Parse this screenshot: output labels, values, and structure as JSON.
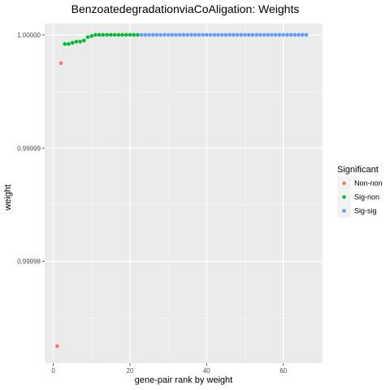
{
  "chart_data": {
    "type": "scatter",
    "title": "BenzoatedegradationviaCoAligation: Weights",
    "xlabel": "gene-pair rank by weight",
    "ylabel": "weight",
    "xlim": [
      -2.25,
      70.25
    ],
    "ylim": [
      0.999971,
      1.000001
    ],
    "x_ticks": [
      0,
      20,
      40,
      60
    ],
    "x_tick_labels": [
      "0",
      "20",
      "40",
      "60"
    ],
    "y_ticks": [
      0.99998,
      0.99999,
      1.0
    ],
    "y_tick_labels": [
      "0.99998",
      "0.99999",
      "1.00000"
    ],
    "grid": true,
    "legend_position": "right",
    "legend": {
      "title": "Significant",
      "entries": [
        "Non-non",
        "Sig-non",
        "Sig-sig"
      ]
    },
    "series": [
      {
        "name": "Non-non",
        "color": "#F8766D",
        "x": [
          1,
          2
        ],
        "y": [
          0.9999725,
          0.9999975
        ]
      },
      {
        "name": "Sig-non",
        "color": "#00BA38",
        "x": [
          3,
          4,
          5,
          6,
          7,
          8,
          9,
          10,
          11,
          12,
          13,
          14,
          15,
          16,
          17,
          18,
          19,
          20,
          21,
          22
        ],
        "y": [
          0.9999992,
          0.9999992,
          0.9999993,
          0.9999994,
          0.9999994,
          0.9999995,
          0.9999998,
          0.9999999,
          1.0,
          1.0,
          1.0,
          1.0,
          1.0,
          1.0,
          1.0,
          1.0,
          1.0,
          1.0,
          1.0,
          1.0
        ]
      },
      {
        "name": "Sig-sig",
        "color": "#619CFF",
        "x": [
          23,
          24,
          25,
          26,
          27,
          28,
          29,
          30,
          31,
          32,
          33,
          34,
          35,
          36,
          37,
          38,
          39,
          40,
          41,
          42,
          43,
          44,
          45,
          46,
          47,
          48,
          49,
          50,
          51,
          52,
          53,
          54,
          55,
          56,
          57,
          58,
          59,
          60,
          61,
          62,
          63,
          64,
          65,
          66
        ],
        "y": [
          1.0,
          1.0,
          1.0,
          1.0,
          1.0,
          1.0,
          1.0,
          1.0,
          1.0,
          1.0,
          1.0,
          1.0,
          1.0,
          1.0,
          1.0,
          1.0,
          1.0,
          1.0,
          1.0,
          1.0,
          1.0,
          1.0,
          1.0,
          1.0,
          1.0,
          1.0,
          1.0,
          1.0,
          1.0,
          1.0,
          1.0,
          1.0,
          1.0,
          1.0,
          1.0,
          1.0,
          1.0,
          1.0,
          1.0,
          1.0,
          1.0,
          1.0,
          1.0,
          1.0
        ]
      }
    ]
  }
}
